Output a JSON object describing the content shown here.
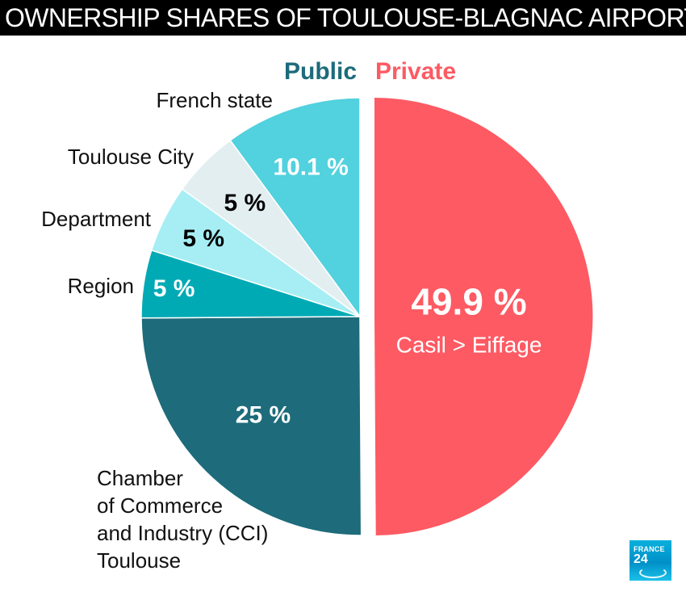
{
  "title": "OWNERSHIP SHARES OF TOULOUSE-BLAGNAC AIRPORT",
  "logo": {
    "line1": "FRANCE",
    "line2": "24"
  },
  "colors": {
    "public": "#1d6b7b",
    "private": "#fd5a63"
  },
  "chart_data": {
    "type": "pie",
    "groups": [
      {
        "label": "Public",
        "color": "#1d6b7b"
      },
      {
        "label": "Private",
        "color": "#fd5a63"
      }
    ],
    "slices": [
      {
        "value": 49.9,
        "value_label": "49.9 %",
        "sublabel": "Casil > Eiffage",
        "group": "Private",
        "color": "#fd5a63"
      },
      {
        "value": 25,
        "value_label": "25 %",
        "name": "Chamber of Commerce and Industry (CCI) Toulouse",
        "name_lines": [
          "Chamber",
          "of Commerce",
          "and Industry (CCI)",
          "Toulouse"
        ],
        "group": "Public",
        "color": "#1d6b7b"
      },
      {
        "value": 5,
        "value_label": "5 %",
        "name": "Region",
        "group": "Public",
        "color": "#00aab5"
      },
      {
        "value": 5,
        "value_label": "5 %",
        "name": "Department",
        "group": "Public",
        "color": "#a6eef4"
      },
      {
        "value": 5,
        "value_label": "5 %",
        "name": "Toulouse City",
        "group": "Public",
        "color": "#e3eef1"
      },
      {
        "value": 10.1,
        "value_label": "10.1 %",
        "name": "French state",
        "group": "Public",
        "color": "#52d1de"
      }
    ]
  }
}
